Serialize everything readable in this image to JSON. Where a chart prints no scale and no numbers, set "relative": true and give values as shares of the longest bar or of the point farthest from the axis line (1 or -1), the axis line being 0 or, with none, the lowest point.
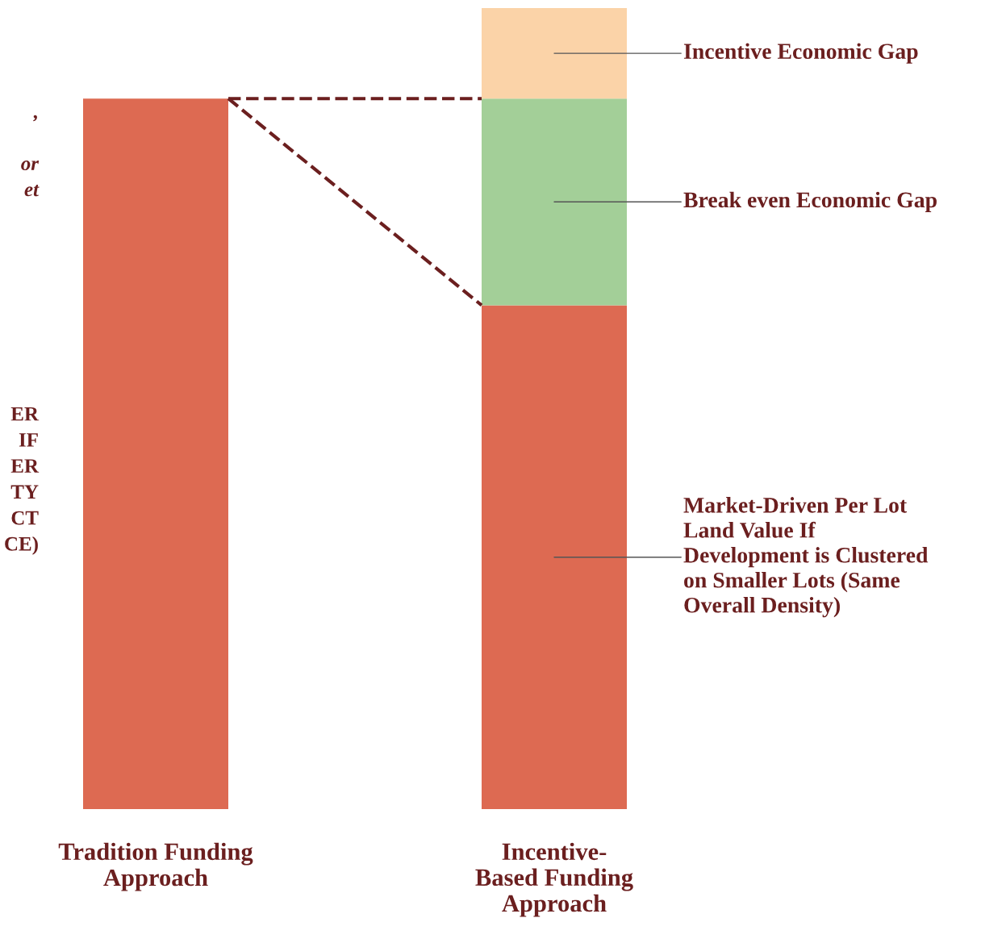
{
  "chart_data": {
    "type": "bar",
    "stacked": true,
    "relative": true,
    "categories": [
      "Tradition Funding Approach",
      "Incentive-Based Funding Approach"
    ],
    "series": [
      {
        "name": "Market-Driven Per Lot Land Value If Development is Clustered on Smaller Lots (Same Overall Density)",
        "color": "#dd6a52",
        "values": [
          0.887,
          0.629
        ]
      },
      {
        "name": "Break even Economic Gap",
        "color": "#a3cf98",
        "values": [
          null,
          0.258
        ]
      },
      {
        "name": "Incentive Economic Gap",
        "color": "#fbd3a8",
        "values": [
          null,
          0.113
        ]
      }
    ],
    "annotations": [
      ",\n\nor\net",
      "ER\nIF\nER\nTY\nCT\nCE)"
    ],
    "grid": false,
    "tick_labels": "x"
  }
}
